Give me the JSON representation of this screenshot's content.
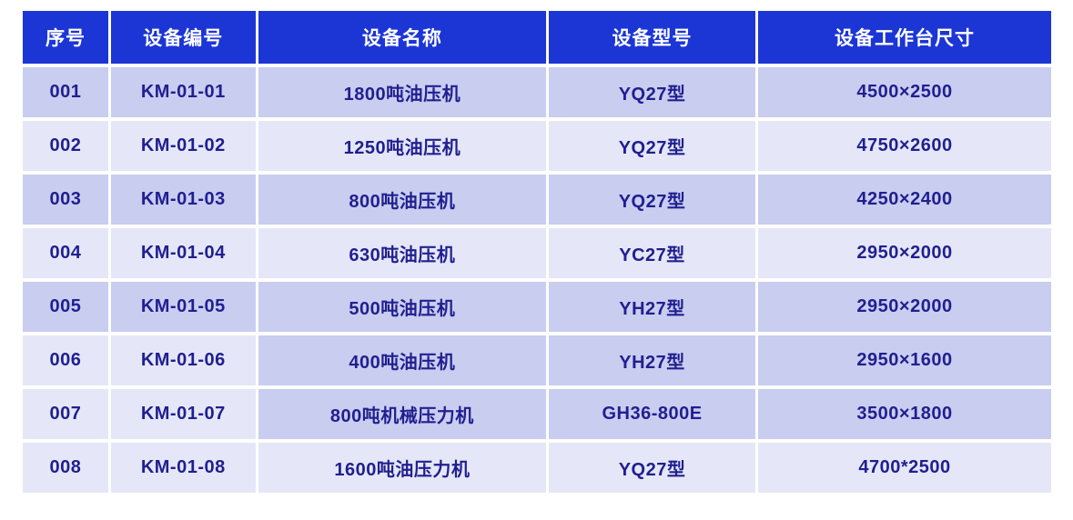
{
  "colors": {
    "header_bg": "#1c36d5",
    "header_text": "#ffffff",
    "row_medium": "#c9cdf0",
    "row_light": "#e5e7f8",
    "cell_text": "#201f90",
    "page_bg": "#ffffff"
  },
  "table": {
    "columns": [
      {
        "label": "序号"
      },
      {
        "label": "设备编号"
      },
      {
        "label": "设备名称"
      },
      {
        "label": "设备型号"
      },
      {
        "label": "设备工作台尺寸"
      }
    ],
    "rows": [
      {
        "cells": [
          "001",
          "KM-01-01",
          "1800吨油压机",
          "YQ27型",
          "4500×2500"
        ]
      },
      {
        "cells": [
          "002",
          "KM-01-02",
          "1250吨油压机",
          "YQ27型",
          "4750×2600"
        ]
      },
      {
        "cells": [
          "003",
          "KM-01-03",
          "800吨油压机",
          "YQ27型",
          "4250×2400"
        ]
      },
      {
        "cells": [
          "004",
          "KM-01-04",
          "630吨油压机",
          "YC27型",
          "2950×2000"
        ]
      },
      {
        "cells": [
          "005",
          "KM-01-05",
          "500吨油压机",
          "YH27型",
          "2950×2000"
        ]
      },
      {
        "cells": [
          "006",
          "KM-01-06",
          "400吨油压机",
          "YH27型",
          "2950×1600"
        ]
      },
      {
        "cells": [
          "007",
          "KM-01-07",
          "800吨机械压力机",
          "GH36-800E",
          "3500×1800"
        ]
      },
      {
        "cells": [
          "008",
          "KM-01-08",
          "1600吨油压力机",
          "YQ27型",
          "4700*2500"
        ]
      }
    ]
  }
}
